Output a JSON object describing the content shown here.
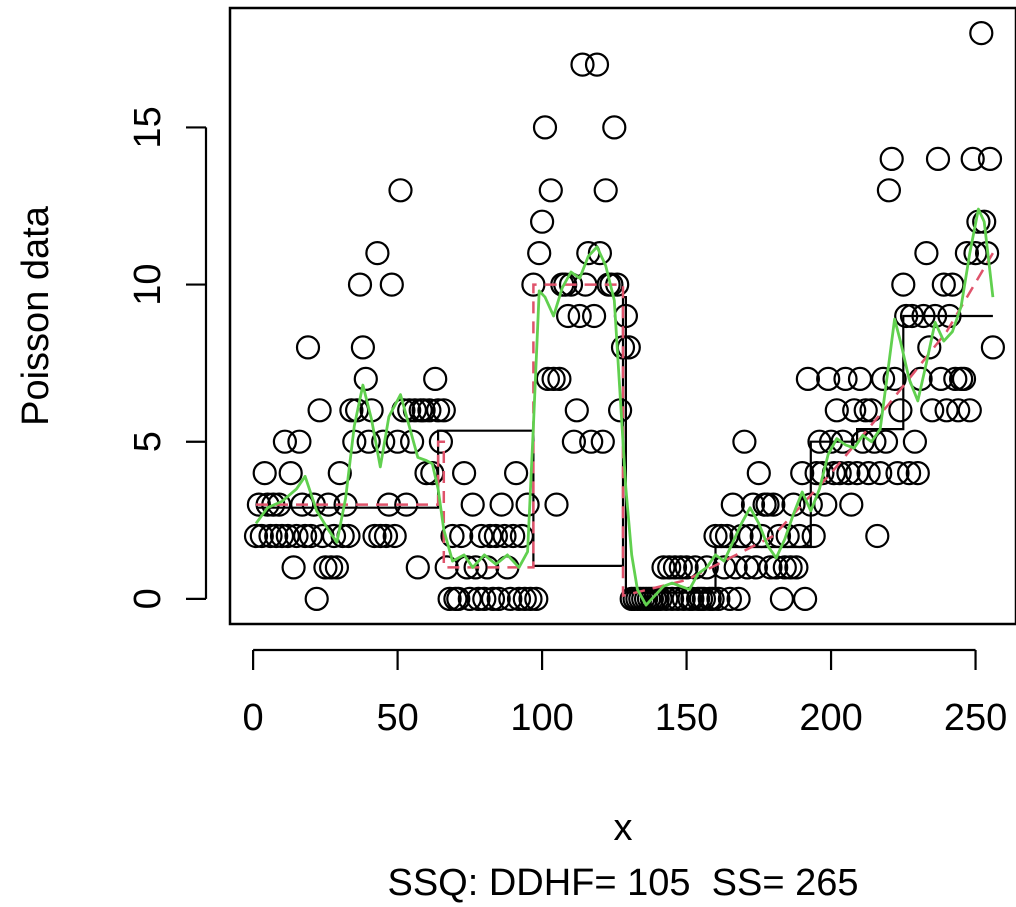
{
  "chart_data": {
    "type": "scatter",
    "title": "",
    "xlabel": "x",
    "ylabel": "Poisson data",
    "sublabel": "SSQ: DDHF= 105  SS= 265",
    "xlim": [
      -8,
      264
    ],
    "ylim": [
      -0.8,
      18.8
    ],
    "x_ticks": [
      0,
      50,
      100,
      150,
      200,
      250
    ],
    "y_ticks": [
      0,
      5,
      10,
      15
    ],
    "grid": false,
    "colors": {
      "points": "#000000",
      "step": "#000000",
      "ddhf": "#df536b",
      "smooth": "#61d04f"
    },
    "points": [
      [
        1,
        2
      ],
      [
        2,
        3
      ],
      [
        3,
        2
      ],
      [
        4,
        4
      ],
      [
        5,
        3
      ],
      [
        6,
        2
      ],
      [
        7,
        3
      ],
      [
        8,
        2
      ],
      [
        9,
        3
      ],
      [
        10,
        2
      ],
      [
        11,
        5
      ],
      [
        12,
        2
      ],
      [
        13,
        4
      ],
      [
        14,
        1
      ],
      [
        15,
        2
      ],
      [
        16,
        5
      ],
      [
        17,
        3
      ],
      [
        18,
        2
      ],
      [
        19,
        8
      ],
      [
        20,
        2
      ],
      [
        21,
        3
      ],
      [
        22,
        0
      ],
      [
        23,
        6
      ],
      [
        24,
        2
      ],
      [
        25,
        1
      ],
      [
        26,
        3
      ],
      [
        27,
        1
      ],
      [
        28,
        2
      ],
      [
        29,
        1
      ],
      [
        30,
        4
      ],
      [
        31,
        2
      ],
      [
        32,
        3
      ],
      [
        33,
        2
      ],
      [
        34,
        6
      ],
      [
        35,
        5
      ],
      [
        36,
        6
      ],
      [
        37,
        10
      ],
      [
        38,
        8
      ],
      [
        39,
        7
      ],
      [
        40,
        5
      ],
      [
        41,
        6
      ],
      [
        42,
        2
      ],
      [
        43,
        11
      ],
      [
        44,
        2
      ],
      [
        45,
        5
      ],
      [
        46,
        2
      ],
      [
        47,
        3
      ],
      [
        48,
        10
      ],
      [
        49,
        2
      ],
      [
        50,
        5
      ],
      [
        51,
        13
      ],
      [
        52,
        6
      ],
      [
        53,
        3
      ],
      [
        54,
        6
      ],
      [
        55,
        5
      ],
      [
        56,
        6
      ],
      [
        57,
        1
      ],
      [
        58,
        6
      ],
      [
        59,
        6
      ],
      [
        60,
        4
      ],
      [
        61,
        6
      ],
      [
        62,
        4
      ],
      [
        63,
        7
      ],
      [
        64,
        6
      ],
      [
        65,
        5
      ],
      [
        66,
        6
      ],
      [
        67,
        1
      ],
      [
        68,
        0
      ],
      [
        69,
        2
      ],
      [
        70,
        0
      ],
      [
        71,
        0
      ],
      [
        72,
        2
      ],
      [
        73,
        4
      ],
      [
        74,
        1
      ],
      [
        75,
        0
      ],
      [
        76,
        3
      ],
      [
        77,
        1
      ],
      [
        78,
        0
      ],
      [
        79,
        2
      ],
      [
        80,
        0
      ],
      [
        81,
        1
      ],
      [
        82,
        2
      ],
      [
        83,
        0
      ],
      [
        84,
        2
      ],
      [
        85,
        0
      ],
      [
        86,
        3
      ],
      [
        87,
        2
      ],
      [
        88,
        1
      ],
      [
        89,
        0
      ],
      [
        90,
        2
      ],
      [
        91,
        4
      ],
      [
        92,
        0
      ],
      [
        93,
        2
      ],
      [
        94,
        0
      ],
      [
        95,
        3
      ],
      [
        96,
        0
      ],
      [
        97,
        10
      ],
      [
        98,
        0
      ],
      [
        99,
        11
      ],
      [
        100,
        12
      ],
      [
        101,
        15
      ],
      [
        102,
        7
      ],
      [
        103,
        13
      ],
      [
        104,
        7
      ],
      [
        105,
        3
      ],
      [
        106,
        7
      ],
      [
        107,
        10
      ],
      [
        108,
        10
      ],
      [
        109,
        9
      ],
      [
        110,
        10
      ],
      [
        111,
        5
      ],
      [
        112,
        6
      ],
      [
        113,
        9
      ],
      [
        114,
        17
      ],
      [
        115,
        10
      ],
      [
        116,
        11
      ],
      [
        117,
        5
      ],
      [
        118,
        9
      ],
      [
        119,
        17
      ],
      [
        120,
        11
      ],
      [
        121,
        5
      ],
      [
        122,
        13
      ],
      [
        123,
        10
      ],
      [
        124,
        10
      ],
      [
        125,
        15
      ],
      [
        126,
        10
      ],
      [
        127,
        6
      ],
      [
        128,
        8
      ],
      [
        129,
        9
      ],
      [
        130,
        8
      ],
      [
        131,
        0
      ],
      [
        132,
        0
      ],
      [
        133,
        0
      ],
      [
        134,
        0
      ],
      [
        135,
        0
      ],
      [
        136,
        0
      ],
      [
        137,
        0
      ],
      [
        138,
        0
      ],
      [
        139,
        0
      ],
      [
        140,
        0
      ],
      [
        141,
        0
      ],
      [
        142,
        1
      ],
      [
        143,
        0
      ],
      [
        144,
        1
      ],
      [
        145,
        0
      ],
      [
        146,
        1
      ],
      [
        147,
        0
      ],
      [
        148,
        1
      ],
      [
        149,
        0
      ],
      [
        150,
        1
      ],
      [
        151,
        0
      ],
      [
        152,
        0
      ],
      [
        153,
        1
      ],
      [
        154,
        0
      ],
      [
        155,
        0
      ],
      [
        156,
        0
      ],
      [
        157,
        1
      ],
      [
        158,
        0
      ],
      [
        159,
        0
      ],
      [
        160,
        2
      ],
      [
        161,
        0
      ],
      [
        162,
        2
      ],
      [
        163,
        1
      ],
      [
        164,
        2
      ],
      [
        165,
        0
      ],
      [
        166,
        3
      ],
      [
        167,
        1
      ],
      [
        168,
        0
      ],
      [
        169,
        2
      ],
      [
        170,
        5
      ],
      [
        171,
        1
      ],
      [
        172,
        2
      ],
      [
        173,
        3
      ],
      [
        174,
        1
      ],
      [
        175,
        4
      ],
      [
        176,
        2
      ],
      [
        177,
        3
      ],
      [
        178,
        3
      ],
      [
        179,
        1
      ],
      [
        180,
        3
      ],
      [
        181,
        1
      ],
      [
        182,
        2
      ],
      [
        183,
        0
      ],
      [
        184,
        1
      ],
      [
        185,
        2
      ],
      [
        186,
        1
      ],
      [
        187,
        3
      ],
      [
        188,
        1
      ],
      [
        189,
        2
      ],
      [
        190,
        4
      ],
      [
        191,
        0
      ],
      [
        192,
        7
      ],
      [
        193,
        3
      ],
      [
        194,
        2
      ],
      [
        195,
        4
      ],
      [
        196,
        5
      ],
      [
        197,
        4
      ],
      [
        198,
        3
      ],
      [
        199,
        7
      ],
      [
        200,
        5
      ],
      [
        201,
        4
      ],
      [
        202,
        6
      ],
      [
        203,
        4
      ],
      [
        204,
        5
      ],
      [
        205,
        7
      ],
      [
        206,
        4
      ],
      [
        207,
        3
      ],
      [
        208,
        6
      ],
      [
        209,
        4
      ],
      [
        210,
        7
      ],
      [
        211,
        5
      ],
      [
        212,
        6
      ],
      [
        213,
        4
      ],
      [
        214,
        6
      ],
      [
        215,
        5
      ],
      [
        216,
        2
      ],
      [
        217,
        4
      ],
      [
        218,
        7
      ],
      [
        219,
        5
      ],
      [
        220,
        13
      ],
      [
        221,
        14
      ],
      [
        222,
        7
      ],
      [
        223,
        4
      ],
      [
        224,
        6
      ],
      [
        225,
        10
      ],
      [
        226,
        9
      ],
      [
        227,
        4
      ],
      [
        228,
        9
      ],
      [
        229,
        5
      ],
      [
        230,
        4
      ],
      [
        231,
        7
      ],
      [
        232,
        9
      ],
      [
        233,
        11
      ],
      [
        234,
        8
      ],
      [
        235,
        6
      ],
      [
        236,
        9
      ],
      [
        237,
        14
      ],
      [
        238,
        7
      ],
      [
        239,
        10
      ],
      [
        240,
        6
      ],
      [
        241,
        9
      ],
      [
        242,
        10
      ],
      [
        243,
        7
      ],
      [
        244,
        6
      ],
      [
        245,
        7
      ],
      [
        246,
        7
      ],
      [
        247,
        11
      ],
      [
        248,
        6
      ],
      [
        249,
        14
      ],
      [
        250,
        11
      ],
      [
        251,
        12
      ],
      [
        252,
        18
      ],
      [
        253,
        12
      ],
      [
        254,
        11
      ],
      [
        255,
        14
      ],
      [
        256,
        8
      ]
    ],
    "step_segments": [
      [
        1,
        64,
        2.9
      ],
      [
        64,
        97,
        5.35
      ],
      [
        97,
        128,
        1.05
      ],
      [
        128,
        129,
        9.6
      ],
      [
        129,
        160,
        0.2
      ],
      [
        160,
        193,
        1.65
      ],
      [
        193,
        209,
        5.0
      ],
      [
        209,
        225,
        5.4
      ],
      [
        225,
        256,
        9.0
      ]
    ],
    "ddhf_line": [
      [
        1,
        3
      ],
      [
        64,
        3
      ],
      [
        64,
        5
      ],
      [
        66,
        5
      ],
      [
        66,
        1
      ],
      [
        97,
        1
      ],
      [
        97,
        10
      ],
      [
        128,
        10
      ],
      [
        128,
        0.1
      ],
      [
        150,
        0.6
      ],
      [
        180,
        2.0
      ],
      [
        200,
        4.0
      ],
      [
        220,
        6.2
      ],
      [
        240,
        8.5
      ],
      [
        256,
        11
      ]
    ],
    "smooth_line": [
      [
        1,
        2.4
      ],
      [
        5,
        2.9
      ],
      [
        10,
        3.1
      ],
      [
        15,
        3.5
      ],
      [
        18,
        3.9
      ],
      [
        22,
        2.8
      ],
      [
        26,
        2.2
      ],
      [
        29,
        1.8
      ],
      [
        32,
        3.2
      ],
      [
        35,
        5.5
      ],
      [
        38,
        6.8
      ],
      [
        41,
        5.7
      ],
      [
        44,
        4.2
      ],
      [
        47,
        5.8
      ],
      [
        51,
        6.5
      ],
      [
        54,
        5.5
      ],
      [
        57,
        4.5
      ],
      [
        60,
        4.4
      ],
      [
        62,
        4.3
      ],
      [
        64,
        3.5
      ],
      [
        66,
        2.2
      ],
      [
        69,
        1.2
      ],
      [
        73,
        1.4
      ],
      [
        76,
        1.0
      ],
      [
        80,
        1.4
      ],
      [
        84,
        1.1
      ],
      [
        88,
        1.4
      ],
      [
        92,
        1.0
      ],
      [
        95,
        1.5
      ],
      [
        97,
        5.5
      ],
      [
        99,
        9.8
      ],
      [
        101,
        9.6
      ],
      [
        104,
        9.0
      ],
      [
        107,
        9.9
      ],
      [
        110,
        10.4
      ],
      [
        113,
        10.2
      ],
      [
        116,
        10.9
      ],
      [
        119,
        11.2
      ],
      [
        122,
        10.6
      ],
      [
        125,
        9.5
      ],
      [
        127,
        6.5
      ],
      [
        129,
        3.5
      ],
      [
        131,
        1.4
      ],
      [
        133,
        0.3
      ],
      [
        136,
        -0.2
      ],
      [
        139,
        0.1
      ],
      [
        142,
        0.4
      ],
      [
        145,
        0.5
      ],
      [
        148,
        0.4
      ],
      [
        151,
        0.3
      ],
      [
        154,
        0.8
      ],
      [
        157,
        1.0
      ],
      [
        160,
        1.4
      ],
      [
        163,
        1.2
      ],
      [
        166,
        1.8
      ],
      [
        169,
        2.4
      ],
      [
        172,
        2.9
      ],
      [
        175,
        2.4
      ],
      [
        178,
        1.7
      ],
      [
        181,
        1.3
      ],
      [
        184,
        1.9
      ],
      [
        187,
        2.7
      ],
      [
        190,
        3.4
      ],
      [
        193,
        2.8
      ],
      [
        196,
        3.5
      ],
      [
        199,
        4.6
      ],
      [
        202,
        5.1
      ],
      [
        205,
        4.9
      ],
      [
        208,
        4.8
      ],
      [
        211,
        5.2
      ],
      [
        214,
        5.0
      ],
      [
        217,
        5.4
      ],
      [
        220,
        7.5
      ],
      [
        222,
        8.9
      ],
      [
        224,
        8.2
      ],
      [
        227,
        7.0
      ],
      [
        230,
        6.3
      ],
      [
        233,
        7.5
      ],
      [
        236,
        8.8
      ],
      [
        239,
        8.2
      ],
      [
        242,
        8.5
      ],
      [
        245,
        9.3
      ],
      [
        248,
        11.0
      ],
      [
        251,
        12.4
      ],
      [
        253,
        12.0
      ],
      [
        256,
        9.6
      ]
    ]
  }
}
